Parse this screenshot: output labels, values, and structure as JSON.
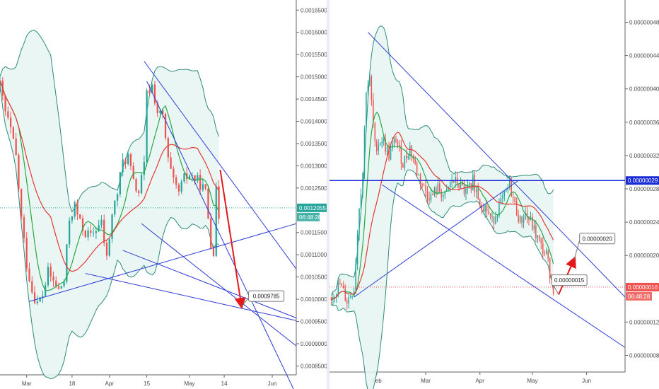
{
  "colors": {
    "bull": "#26a69a",
    "bear": "#ef5350",
    "trend_line": "#2b3bd6",
    "ma_red": "#e53935",
    "ma_green": "#27a844",
    "band": "#2e8b7a",
    "band_fill": "#e6f5f2",
    "arrow": "#e3191c",
    "last_price_left": "#26a69a",
    "last_price_right": "#ef5350",
    "level_line": "#1a2bd8"
  },
  "chart_data": [
    {
      "type": "candlestick",
      "id": "left",
      "ylim": [
        0.00083,
        0.00166
      ],
      "y_ticks": [
        "0.0016500",
        "0.0016000",
        "0.0015500",
        "0.0015000",
        "0.0014500",
        "0.0014000",
        "0.0013500",
        "0.0013000",
        "0.0012500",
        "0.0011500",
        "0.0011000",
        "0.0010500",
        "0.0010000",
        "0.0009500",
        "0.0009000",
        "0.0008500"
      ],
      "x_labels": [
        {
          "label": "Mar",
          "day": 0
        },
        {
          "label": "18",
          "day": 17
        },
        {
          "label": "Apr",
          "day": 31
        },
        {
          "label": "15",
          "day": 45
        },
        {
          "label": "May",
          "day": 61
        },
        {
          "label": "14",
          "day": 74
        },
        {
          "label": "Jun",
          "day": 92
        }
      ],
      "xlim": [
        -10,
        101
      ],
      "candle_days": [
        -10,
        72
      ],
      "anchors": [
        [
          -10,
          0.00148
        ],
        [
          -8,
          0.00142
        ],
        [
          -6,
          0.00138
        ],
        [
          -4,
          0.00132
        ],
        [
          -2,
          0.00118
        ],
        [
          0,
          0.00108
        ],
        [
          2,
          0.00102
        ],
        [
          4,
          0.00099
        ],
        [
          6,
          0.00101
        ],
        [
          8,
          0.00106
        ],
        [
          10,
          0.00104
        ],
        [
          12,
          0.00102
        ],
        [
          14,
          0.00104
        ],
        [
          16,
          0.00118
        ],
        [
          18,
          0.00121
        ],
        [
          20,
          0.00117
        ],
        [
          22,
          0.00115
        ],
        [
          24,
          0.00114
        ],
        [
          26,
          0.00116
        ],
        [
          28,
          0.00117
        ],
        [
          30,
          0.00109
        ],
        [
          32,
          0.00119
        ],
        [
          34,
          0.00124
        ],
        [
          36,
          0.00131
        ],
        [
          38,
          0.00132
        ],
        [
          40,
          0.00126
        ],
        [
          42,
          0.00124
        ],
        [
          44,
          0.0013
        ],
        [
          45,
          0.00146
        ],
        [
          47,
          0.00148
        ],
        [
          49,
          0.00142
        ],
        [
          51,
          0.00141
        ],
        [
          53,
          0.00131
        ],
        [
          55,
          0.00126
        ],
        [
          57,
          0.00124
        ],
        [
          59,
          0.00127
        ],
        [
          61,
          0.00128
        ],
        [
          63,
          0.00127
        ],
        [
          65,
          0.00126
        ],
        [
          67,
          0.00124
        ],
        [
          69,
          0.00113
        ],
        [
          70,
          0.00111
        ],
        [
          71,
          0.00124
        ],
        [
          72,
          0.00119
        ]
      ],
      "trend_lines": [
        {
          "x1": 44,
          "y1": 0.001535,
          "x2": 101,
          "y2": 0.001068
        },
        {
          "x1": 45,
          "y1": 0.00149,
          "x2": 101,
          "y2": 0.000785
        },
        {
          "x1": 43,
          "y1": 0.00117,
          "x2": 101,
          "y2": 0.000895
        },
        {
          "x1": 36,
          "y1": 0.00111,
          "x2": 101,
          "y2": 0.000958
        },
        {
          "x1": 22,
          "y1": 0.001058,
          "x2": 101,
          "y2": 0.000952
        },
        {
          "x1": 1,
          "y1": 0.000995,
          "x2": 101,
          "y2": 0.00117
        }
      ],
      "arrows": [
        {
          "x1": 72.5,
          "y1": 0.001291,
          "x2": 80.5,
          "y2": 0.000984
        }
      ],
      "callouts": [
        {
          "label": "0.0009785",
          "x": 80.5,
          "y": 0.000984
        }
      ],
      "last_price": {
        "value": "0.0012055",
        "countdown": "06:48:28",
        "y": 0.0012055
      }
    },
    {
      "type": "candlestick",
      "id": "right",
      "ylim": [
        6e-08,
        5e-07
      ],
      "y_ticks": [
        "0.00000048",
        "0.00000044",
        "0.00000040",
        "0.00000036",
        "0.00000032",
        "0.00000028",
        "0.00000024",
        "0.00000020",
        "0.00000012",
        "0.00000008"
      ],
      "x_labels": [
        {
          "label": "Feb",
          "day": 31
        },
        {
          "label": "Mar",
          "day": 59
        },
        {
          "label": "Apr",
          "day": 90
        },
        {
          "label": "May",
          "day": 120
        },
        {
          "label": "Jun",
          "day": 151
        }
      ],
      "xlim": [
        4,
        173
      ],
      "candle_days": [
        5,
        132
      ],
      "anchors": [
        [
          5,
          1.5e-07
        ],
        [
          10,
          1.65e-07
        ],
        [
          14,
          1.45e-07
        ],
        [
          18,
          1.6e-07
        ],
        [
          21,
          2.6e-07
        ],
        [
          23,
          3e-07
        ],
        [
          25,
          4e-07
        ],
        [
          27,
          4.1e-07
        ],
        [
          30,
          3.3e-07
        ],
        [
          34,
          3.4e-07
        ],
        [
          38,
          3.2e-07
        ],
        [
          42,
          3.4e-07
        ],
        [
          46,
          3.1e-07
        ],
        [
          50,
          3.3e-07
        ],
        [
          54,
          3e-07
        ],
        [
          58,
          2.8e-07
        ],
        [
          62,
          2.7e-07
        ],
        [
          66,
          2.8e-07
        ],
        [
          70,
          2.7e-07
        ],
        [
          74,
          2.9e-07
        ],
        [
          78,
          2.85e-07
        ],
        [
          82,
          2.75e-07
        ],
        [
          86,
          2.9e-07
        ],
        [
          90,
          2.65e-07
        ],
        [
          94,
          2.55e-07
        ],
        [
          97,
          2.4e-07
        ],
        [
          100,
          2.55e-07
        ],
        [
          104,
          2.7e-07
        ],
        [
          107,
          2.85e-07
        ],
        [
          110,
          2.6e-07
        ],
        [
          113,
          2.4e-07
        ],
        [
          116,
          2.5e-07
        ],
        [
          119,
          2.4e-07
        ],
        [
          122,
          2.25e-07
        ],
        [
          125,
          2.1e-07
        ],
        [
          128,
          2e-07
        ],
        [
          130,
          1.8e-07
        ],
        [
          132,
          1.6e-07
        ]
      ],
      "trend_lines": [
        {
          "x1": 26,
          "y1": 4.68e-07,
          "x2": 173,
          "y2": 1.5e-07
        },
        {
          "x1": 34,
          "y1": 2.85e-07,
          "x2": 173,
          "y2": 8.95e-08
        },
        {
          "x1": 18,
          "y1": 1.5e-07,
          "x2": 112,
          "y2": 2.9e-07
        }
      ],
      "level_line": {
        "y": 2.9e-07,
        "label": "0.00000029"
      },
      "arrows": [
        {
          "x1": 135,
          "y1": 1.53e-07,
          "x2": 144,
          "y2": 1.96e-07
        }
      ],
      "callouts": [
        {
          "label": "0.00000020",
          "x": 144,
          "y": 1.96e-07,
          "box_x": 147,
          "box_y": 2.25e-07
        },
        {
          "label": "0.00000015",
          "x": 135,
          "y": 1.53e-07,
          "box_x": 131,
          "box_y": 1.75e-07
        }
      ],
      "last_price": {
        "value": "0.00000016",
        "countdown": "06:48:28",
        "y": 1.62e-07
      }
    }
  ]
}
